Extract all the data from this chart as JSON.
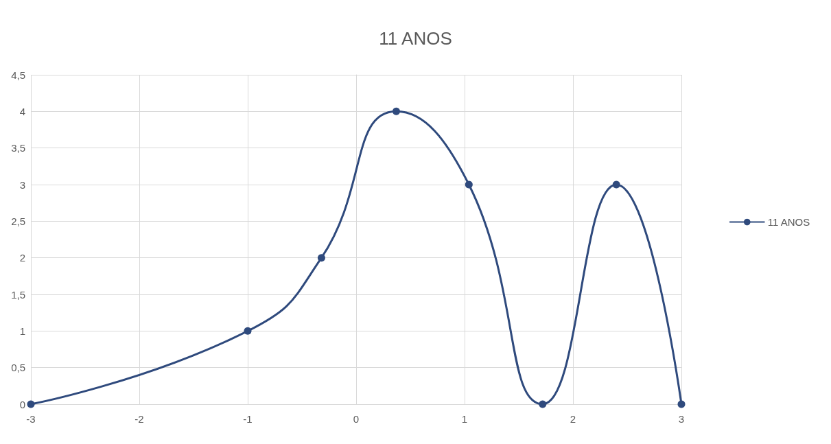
{
  "chart_data": {
    "type": "line",
    "title": "11 ANOS",
    "x": [
      -3,
      -1,
      -0.32,
      0.37,
      1.04,
      1.72,
      2.4,
      3
    ],
    "series": [
      {
        "name": "11 ANOS",
        "color": "#2f4a7d",
        "values": [
          0,
          1,
          2,
          4,
          3,
          0,
          3,
          0
        ]
      }
    ],
    "xlim": [
      -3,
      3
    ],
    "xticks": [
      -3,
      -2,
      -1,
      0,
      1,
      2,
      3
    ],
    "ylim": [
      0,
      4.5
    ],
    "yticks": [
      0,
      {
        "value": 0.5,
        "label": "0,5"
      },
      1,
      {
        "value": 1.5,
        "label": "1,5"
      },
      2,
      {
        "value": 2.5,
        "label": "2,5"
      },
      3,
      {
        "value": 3.5,
        "label": "3,5"
      },
      4,
      {
        "value": 4.5,
        "label": "4,5"
      }
    ],
    "grid": true,
    "legend": "right",
    "marker": "circle",
    "line_style": "solid"
  }
}
